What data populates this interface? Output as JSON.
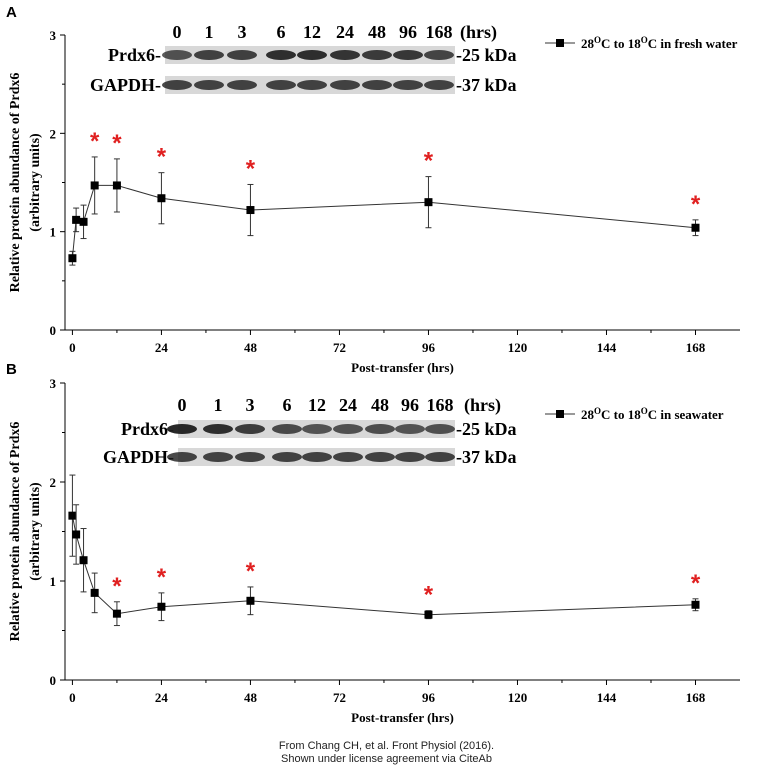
{
  "chart_data": [
    {
      "panel": "A",
      "type": "line",
      "xlabel": "Post-transfer (hrs)",
      "ylabel": "Relative protein abundance of Prdx6",
      "ylabel2": "(arbitrary units)",
      "xlim": [
        -2,
        180
      ],
      "ylim": [
        0,
        3
      ],
      "xticks": [
        0,
        24,
        48,
        72,
        96,
        120,
        144,
        168
      ],
      "yticks": [
        0,
        1,
        2,
        3
      ],
      "legend": {
        "label": "28",
        "sup1": "O",
        "mid": "C to 18",
        "sup2": "O",
        "tail": "C in fresh water",
        "position": "top-right"
      },
      "series": [
        {
          "x": [
            0,
            1,
            3,
            6,
            12,
            24,
            48,
            96,
            168
          ],
          "y": [
            0.73,
            1.12,
            1.1,
            1.47,
            1.47,
            1.34,
            1.22,
            1.3,
            1.04
          ],
          "err": [
            0.07,
            0.12,
            0.17,
            0.29,
            0.27,
            0.26,
            0.26,
            0.26,
            0.08
          ],
          "significant": [
            false,
            false,
            false,
            true,
            true,
            true,
            true,
            true,
            true
          ]
        }
      ],
      "significance_mark": "*",
      "blot": {
        "times": [
          "0",
          "1",
          "3",
          "6",
          "12",
          "24",
          "48",
          "96",
          "168"
        ],
        "unit": "(hrs)",
        "row1_label": "Prdx6-",
        "row1_size": "-25 kDa",
        "row2_label": "GAPDH-",
        "row2_size": "-37 kDa"
      }
    },
    {
      "panel": "B",
      "type": "line",
      "xlabel": "Post-transfer (hrs)",
      "ylabel": "Relative protein abundance of Prdx6",
      "ylabel2": "(arbitrary units)",
      "xlim": [
        -2,
        180
      ],
      "ylim": [
        0,
        3
      ],
      "xticks": [
        0,
        24,
        48,
        72,
        96,
        120,
        144,
        168
      ],
      "yticks": [
        0,
        1,
        2,
        3
      ],
      "legend": {
        "label": "28",
        "sup1": "O",
        "mid": "C to 18",
        "sup2": "O",
        "tail": "C in seawater",
        "position": "top-right"
      },
      "series": [
        {
          "x": [
            0,
            1,
            3,
            6,
            12,
            24,
            48,
            96,
            168
          ],
          "y": [
            1.66,
            1.47,
            1.21,
            0.88,
            0.67,
            0.74,
            0.8,
            0.66,
            0.76
          ],
          "err": [
            0.41,
            0.3,
            0.32,
            0.2,
            0.12,
            0.14,
            0.14,
            0.04,
            0.06
          ],
          "significant": [
            false,
            false,
            false,
            false,
            true,
            true,
            true,
            true,
            true
          ]
        }
      ],
      "significance_mark": "*",
      "blot": {
        "times": [
          "0",
          "1",
          "3",
          "6",
          "12",
          "24",
          "48",
          "96",
          "168"
        ],
        "unit": "(hrs)",
        "row1_label": "Prdx6-",
        "row1_size": "-25 kDa",
        "row2_label": "GAPDH-",
        "row2_size": "-37 kDa"
      }
    }
  ],
  "credit": {
    "line1": "From Chang CH, et al. Front Physiol (2016).",
    "line2": "Shown under license agreement via CiteAb"
  },
  "colors": {
    "axis": "#000000",
    "line": "#333333",
    "marker": "#000000",
    "significance": "#e02020",
    "band_dark": "#1c1c1c"
  }
}
